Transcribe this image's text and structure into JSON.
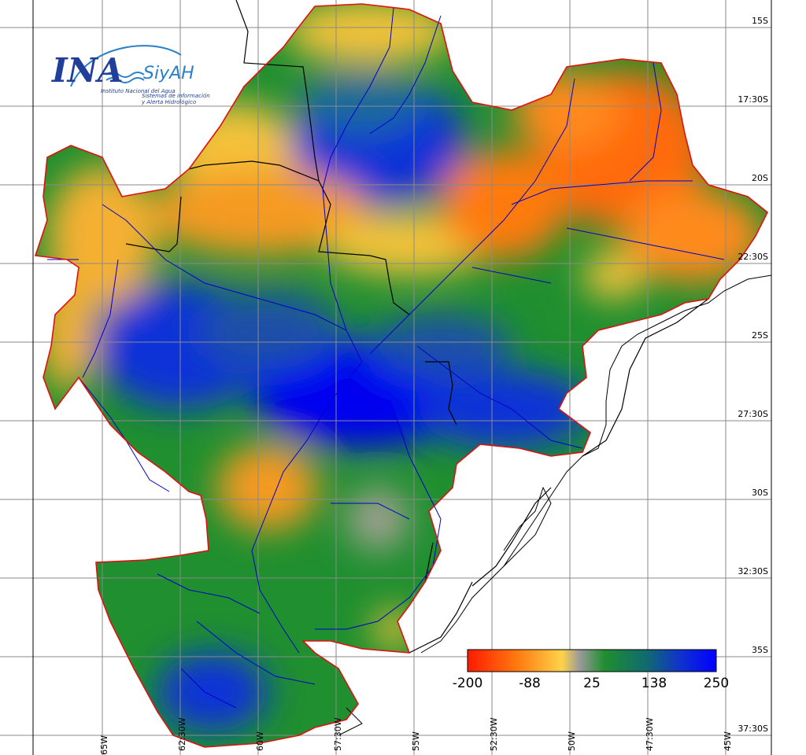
{
  "logo": {
    "main": "INA",
    "product": "SiyAH",
    "org": "Instituto Nacional del Agua",
    "line1": "Sistemas de información",
    "line2": "y Alerta Hidrológico"
  },
  "lat_labels": [
    "15S",
    "17:30S",
    "20S",
    "22:30S",
    "25S",
    "27:30S",
    "30S",
    "32:30S",
    "35S",
    "37:30S"
  ],
  "lon_labels": [
    "65W",
    "62:30W",
    "60W",
    "57:30W",
    "55W",
    "52:30W",
    "50W",
    "47:30W",
    "45W"
  ],
  "colorbar": {
    "labels": [
      "-200",
      "-88",
      "25",
      "138",
      "250"
    ],
    "stops": [
      "#ff1a00",
      "#ff8a1a",
      "#ffd24a",
      "#9a9a9a",
      "#1f8f2f",
      "#1a7a4a",
      "#1040c0",
      "#0000ff"
    ]
  },
  "colors": {
    "border": "#e01010",
    "grid": "#888888",
    "rivers": "#0000cc",
    "political": "#000000",
    "dry": "#ff7a10",
    "wet": "#0a2cd0",
    "mid": "#1f8f2f"
  }
}
